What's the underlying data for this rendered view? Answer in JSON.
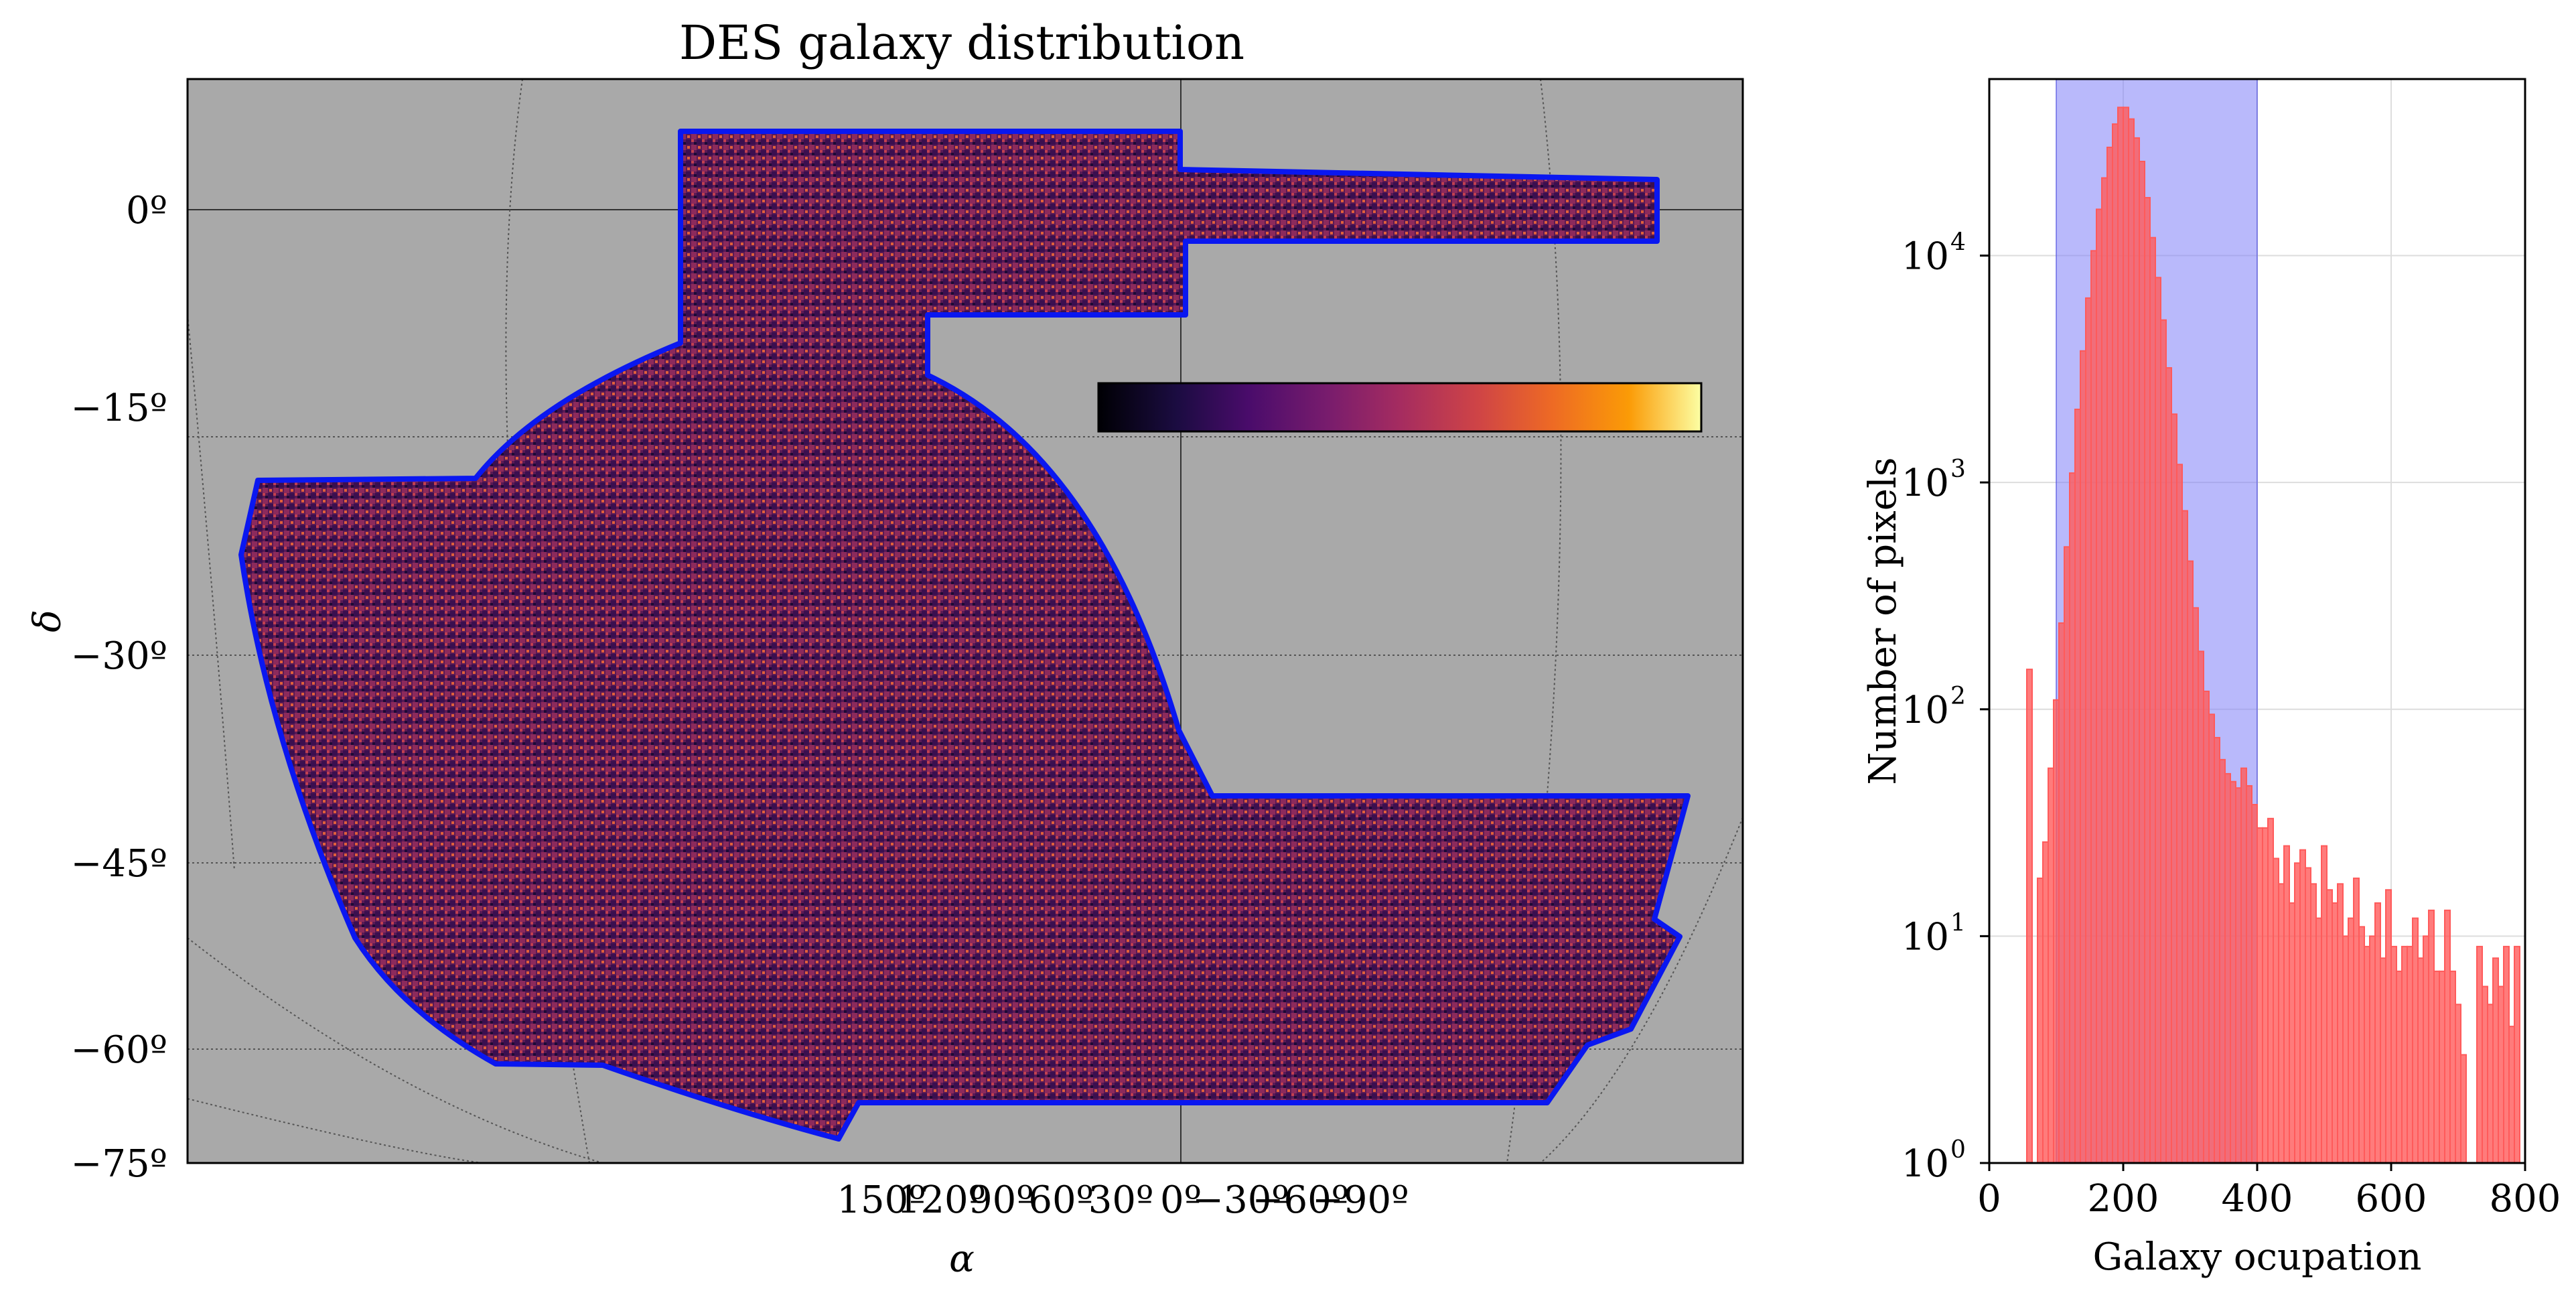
{
  "chart_data": [
    {
      "type": "heatmap",
      "title": "DES galaxy distribution",
      "xlabel": "α",
      "ylabel": "δ",
      "x_tick_labels": [
        "150º",
        "120º",
        "90º",
        "60º",
        "30º",
        "0º",
        "−30º",
        "−60º",
        "−90º"
      ],
      "x_ticks": [
        150,
        120,
        90,
        60,
        30,
        0,
        -30,
        -60,
        -90
      ],
      "y_tick_labels": [
        "0º",
        "−15º",
        "−30º",
        "−45º",
        "−60º",
        "−75º"
      ],
      "y_ticks": [
        0,
        -15,
        -30,
        -45,
        -60,
        -75
      ],
      "colormap": "inferno",
      "colorbar_orientation": "horizontal",
      "background_color": "#a9a9a9",
      "footprint_outline_color": "#0a17f0",
      "grid": true
    },
    {
      "type": "bar",
      "subtype": "histogram",
      "title": "",
      "xlabel": "Galaxy ocupation",
      "ylabel": "Number of pixels",
      "y_scale": "log",
      "xlim": [
        0,
        800
      ],
      "ylim": [
        1,
        60000
      ],
      "x_tick_labels": [
        "0",
        "200",
        "400",
        "600",
        "800"
      ],
      "x_ticks": [
        0,
        200,
        400,
        600,
        800
      ],
      "y_tick_labels": [
        "10",
        "10",
        "10",
        "10",
        "10"
      ],
      "y_tick_exponents": [
        "0",
        "1",
        "2",
        "3",
        "4"
      ],
      "y_ticks": [
        1,
        10,
        100,
        1000,
        10000
      ],
      "bin_width": 8,
      "bin_starts": [
        56,
        64,
        72,
        80,
        88,
        96,
        104,
        112,
        120,
        128,
        136,
        144,
        152,
        160,
        168,
        176,
        184,
        192,
        200,
        208,
        216,
        224,
        232,
        240,
        248,
        256,
        264,
        272,
        280,
        288,
        296,
        304,
        312,
        320,
        328,
        336,
        344,
        352,
        360,
        368,
        376,
        384,
        392,
        400,
        408,
        416,
        424,
        432,
        440,
        448,
        456,
        464,
        472,
        480,
        488,
        496,
        504,
        512,
        520,
        528,
        536,
        544,
        552,
        560,
        568,
        576,
        584,
        592,
        600,
        608,
        616,
        624,
        632,
        640,
        648,
        656,
        664,
        672,
        680,
        688,
        696,
        704,
        712,
        720,
        728,
        736,
        744,
        752,
        760,
        768,
        776,
        784,
        792
      ],
      "counts": [
        150,
        0,
        18,
        26,
        55,
        110,
        240,
        520,
        1100,
        2100,
        3800,
        6500,
        10500,
        16000,
        22000,
        30000,
        38000,
        45000,
        45000,
        40000,
        33000,
        26000,
        18000,
        12000,
        8000,
        5200,
        3200,
        2000,
        1200,
        750,
        450,
        280,
        180,
        120,
        95,
        75,
        60,
        52,
        48,
        45,
        55,
        46,
        38,
        30,
        30,
        33,
        22,
        17,
        25,
        14,
        21,
        24,
        20,
        17,
        12,
        25,
        16,
        14,
        17,
        10,
        12,
        18,
        11,
        9,
        10,
        14,
        8,
        16,
        9,
        7,
        9,
        9,
        12,
        8,
        10,
        13,
        7,
        7,
        13,
        7,
        5,
        3,
        1,
        0,
        9,
        6,
        5,
        8,
        6,
        9,
        4,
        9,
        1
      ],
      "series": [
        {
          "name": "",
          "color": "#ff5a5a"
        }
      ],
      "highlight_range": [
        100,
        400
      ],
      "highlight_color": "#8080f8",
      "grid": true
    }
  ]
}
